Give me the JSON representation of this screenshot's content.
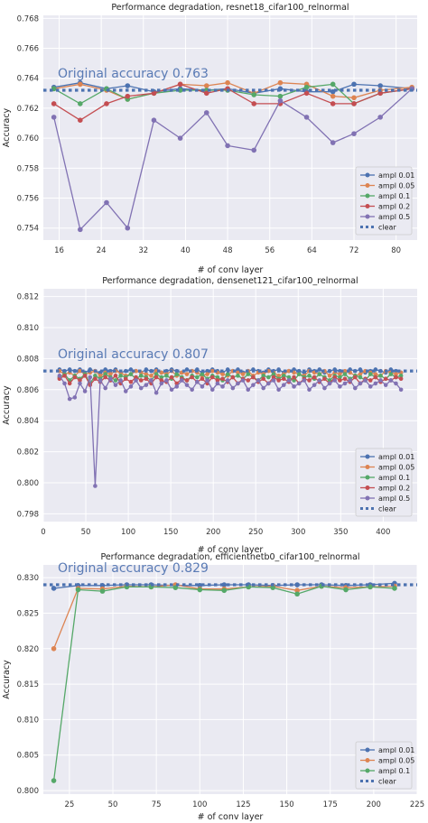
{
  "colors": {
    "background": "#eaeaf2",
    "grid": "#ffffff",
    "ampl_0_01": "#4c72b0",
    "ampl_0_05": "#dd8452",
    "ampl_0_1": "#55a868",
    "ampl_0_2": "#c44e52",
    "ampl_0_5": "#8172b3",
    "clear": "#4c72b0",
    "annotation": "#5a7bb5"
  },
  "chart_data": [
    {
      "type": "line",
      "title": "Performance degradation, resnet18_cifar100_relnormal",
      "xlabel": "# of conv layer",
      "ylabel": "Accuracy",
      "annotation": "Original accuracy 0.763",
      "xlim": [
        13,
        84
      ],
      "ylim": [
        0.7532,
        0.7682
      ],
      "xticks": [
        16,
        24,
        32,
        40,
        48,
        56,
        64,
        72,
        80
      ],
      "yticks": [
        0.754,
        0.756,
        0.758,
        0.76,
        0.762,
        0.764,
        0.766,
        0.768
      ],
      "ytick_labels": [
        "0.754",
        "0.756",
        "0.758",
        "0.760",
        "0.762",
        "0.764",
        "0.766",
        "0.768"
      ],
      "legend_position": "lower-right",
      "x": [
        15,
        20,
        25,
        29,
        34,
        39,
        44,
        48,
        53,
        58,
        63,
        68,
        72,
        77,
        83
      ],
      "series": [
        {
          "name": "ampl 0.01",
          "values": [
            0.7634,
            0.7637,
            0.7633,
            0.7635,
            0.7631,
            0.7633,
            0.7632,
            0.7633,
            0.763,
            0.7633,
            0.7631,
            0.7631,
            0.7636,
            0.7635,
            0.7633
          ]
        },
        {
          "name": "ampl 0.05",
          "values": [
            0.7633,
            0.7636,
            0.7632,
            0.7626,
            0.763,
            0.7636,
            0.7635,
            0.7637,
            0.763,
            0.7637,
            0.7636,
            0.7628,
            0.7627,
            0.7632,
            0.7634
          ]
        },
        {
          "name": "ampl 0.1",
          "values": [
            0.7633,
            0.7623,
            0.7633,
            0.7626,
            0.763,
            0.7632,
            0.7632,
            0.7632,
            0.7629,
            0.7628,
            0.7634,
            0.7636,
            0.7623,
            0.763,
            0.7633
          ]
        },
        {
          "name": "ampl 0.2",
          "values": [
            0.7623,
            0.7612,
            0.7623,
            0.7628,
            0.763,
            0.7636,
            0.763,
            0.7633,
            0.7623,
            0.7623,
            0.763,
            0.7623,
            0.7623,
            0.763,
            0.7633
          ]
        },
        {
          "name": "ampl 0.5",
          "values": [
            0.7614,
            0.7539,
            0.7557,
            0.754,
            0.7612,
            0.76,
            0.7617,
            0.7595,
            0.7592,
            0.7625,
            0.7614,
            0.7597,
            0.7603,
            0.7614,
            0.7633
          ]
        }
      ],
      "clear": {
        "name": "clear",
        "value": 0.7632
      }
    },
    {
      "type": "line",
      "title": "Performance degradation, densenet121_cifar100_relnormal",
      "xlabel": "# of conv layer",
      "ylabel": "Accuracy",
      "annotation": "Original accuracy 0.807",
      "xlim": [
        0,
        440
      ],
      "ylim": [
        0.7975,
        0.8125
      ],
      "xticks": [
        0,
        50,
        100,
        150,
        200,
        250,
        300,
        350,
        400
      ],
      "yticks": [
        0.798,
        0.8,
        0.802,
        0.804,
        0.806,
        0.808,
        0.81,
        0.812
      ],
      "ytick_labels": [
        "0.798",
        "0.800",
        "0.802",
        "0.804",
        "0.806",
        "0.808",
        "0.810",
        "0.812"
      ],
      "legend_position": "lower-right",
      "x": [
        19,
        25,
        31,
        37,
        43,
        49,
        55,
        61,
        67,
        73,
        79,
        85,
        91,
        97,
        103,
        109,
        115,
        121,
        127,
        133,
        139,
        145,
        151,
        157,
        163,
        169,
        175,
        181,
        187,
        193,
        199,
        205,
        211,
        217,
        223,
        229,
        235,
        241,
        247,
        253,
        259,
        265,
        271,
        277,
        283,
        289,
        295,
        301,
        307,
        313,
        319,
        325,
        331,
        337,
        343,
        349,
        355,
        361,
        367,
        373,
        379,
        385,
        391,
        397,
        403,
        409,
        415,
        421
      ],
      "series": [
        {
          "name": "ampl 0.01",
          "values": [
            0.8073,
            0.8072,
            0.8073,
            0.8072,
            0.8073,
            0.8071,
            0.8073,
            0.8072,
            0.8071,
            0.8073,
            0.8072,
            0.8073,
            0.8071,
            0.8072,
            0.8073,
            0.8072,
            0.8071,
            0.8073,
            0.8072,
            0.8073,
            0.8071,
            0.8072,
            0.8073,
            0.8072,
            0.8071,
            0.8073,
            0.8072,
            0.8073,
            0.8071,
            0.8072,
            0.8073,
            0.8072,
            0.8071,
            0.8073,
            0.8072,
            0.8073,
            0.8071,
            0.8072,
            0.8073,
            0.8072,
            0.8071,
            0.8073,
            0.8072,
            0.8073,
            0.8071,
            0.8072,
            0.8073,
            0.8072,
            0.8071,
            0.8073,
            0.8072,
            0.8073,
            0.8071,
            0.8072,
            0.8073,
            0.8072,
            0.8071,
            0.8073,
            0.8072,
            0.8073,
            0.8071,
            0.8072,
            0.8073,
            0.8072,
            0.8071,
            0.8073,
            0.8072,
            0.8071
          ]
        },
        {
          "name": "ampl 0.05",
          "values": [
            0.8072,
            0.807,
            0.8071,
            0.8069,
            0.8072,
            0.807,
            0.8071,
            0.8072,
            0.8069,
            0.8071,
            0.807,
            0.8072,
            0.8071,
            0.8069,
            0.807,
            0.8072,
            0.8071,
            0.807,
            0.8069,
            0.8072,
            0.8071,
            0.807,
            0.8072,
            0.8069,
            0.8071,
            0.807,
            0.8072,
            0.8071,
            0.8069,
            0.807,
            0.8072,
            0.8071,
            0.807,
            0.8069,
            0.8072,
            0.8071,
            0.807,
            0.8072,
            0.8069,
            0.8071,
            0.807,
            0.8072,
            0.8071,
            0.8069,
            0.807,
            0.8072,
            0.8071,
            0.807,
            0.8069,
            0.8072,
            0.8071,
            0.807,
            0.8072,
            0.8069,
            0.8071,
            0.807,
            0.8072,
            0.8071,
            0.8069,
            0.807,
            0.8072,
            0.8071,
            0.807,
            0.8069,
            0.8072,
            0.8071,
            0.807,
            0.8071
          ]
        },
        {
          "name": "ampl 0.1",
          "values": [
            0.8068,
            0.807,
            0.8066,
            0.8069,
            0.8067,
            0.807,
            0.8064,
            0.8069,
            0.8067,
            0.807,
            0.8068,
            0.8066,
            0.8069,
            0.8068,
            0.807,
            0.8067,
            0.8069,
            0.8068,
            0.8066,
            0.807,
            0.8068,
            0.8069,
            0.8067,
            0.807,
            0.8068,
            0.8066,
            0.8069,
            0.8068,
            0.807,
            0.8067,
            0.8069,
            0.8068,
            0.8066,
            0.807,
            0.8068,
            0.8069,
            0.8067,
            0.807,
            0.8068,
            0.8066,
            0.8069,
            0.8068,
            0.807,
            0.8067,
            0.8069,
            0.8068,
            0.8066,
            0.807,
            0.8068,
            0.8069,
            0.8067,
            0.807,
            0.8068,
            0.8066,
            0.8069,
            0.8068,
            0.807,
            0.8067,
            0.8069,
            0.8068,
            0.8066,
            0.807,
            0.8068,
            0.8069,
            0.8067,
            0.807,
            0.8068,
            0.8069
          ]
        },
        {
          "name": "ampl 0.2",
          "values": [
            0.8067,
            0.8069,
            0.8064,
            0.8068,
            0.8066,
            0.8069,
            0.8063,
            0.8067,
            0.8065,
            0.8068,
            0.8066,
            0.8069,
            0.8064,
            0.8067,
            0.8065,
            0.8068,
            0.8066,
            0.8067,
            0.8064,
            0.8068,
            0.8066,
            0.8065,
            0.8068,
            0.8064,
            0.8067,
            0.8066,
            0.8068,
            0.8065,
            0.8067,
            0.8064,
            0.8068,
            0.8066,
            0.8067,
            0.8065,
            0.8068,
            0.8064,
            0.8067,
            0.8066,
            0.8068,
            0.8065,
            0.8067,
            0.8064,
            0.8068,
            0.8066,
            0.8067,
            0.8065,
            0.8068,
            0.8064,
            0.8067,
            0.8066,
            0.8068,
            0.8065,
            0.8067,
            0.8064,
            0.8068,
            0.8066,
            0.8067,
            0.8065,
            0.8068,
            0.8064,
            0.8067,
            0.8066,
            0.8068,
            0.8065,
            0.8067,
            0.8066,
            0.8068,
            0.8067
          ]
        },
        {
          "name": "ampl 0.5",
          "values": [
            0.8069,
            0.8064,
            0.8054,
            0.8055,
            0.8064,
            0.8059,
            0.8068,
            0.7998,
            0.8066,
            0.8061,
            0.8067,
            0.8063,
            0.8066,
            0.8059,
            0.8062,
            0.8066,
            0.8061,
            0.8063,
            0.8066,
            0.8058,
            0.8064,
            0.8066,
            0.806,
            0.8062,
            0.8066,
            0.8063,
            0.806,
            0.8065,
            0.8062,
            0.8066,
            0.806,
            0.8064,
            0.8062,
            0.8066,
            0.8061,
            0.8064,
            0.8066,
            0.806,
            0.8063,
            0.8066,
            0.8061,
            0.8064,
            0.8066,
            0.806,
            0.8063,
            0.8066,
            0.8062,
            0.8064,
            0.8066,
            0.806,
            0.8063,
            0.8066,
            0.8061,
            0.8064,
            0.8066,
            0.8062,
            0.8064,
            0.8066,
            0.8061,
            0.8064,
            0.8066,
            0.8062,
            0.8064,
            0.8066,
            0.8063,
            0.8066,
            0.8064,
            0.806
          ]
        }
      ],
      "clear": {
        "name": "clear",
        "value": 0.8072
      }
    },
    {
      "type": "line",
      "title": "Performance degradation, efficientnetb0_cifar100_relnormal",
      "xlabel": "# of conv layer",
      "ylabel": "Accuracy",
      "annotation": "Original accuracy 0.829",
      "xlim": [
        10,
        225
      ],
      "ylim": [
        0.7995,
        0.8318
      ],
      "xticks": [
        25,
        50,
        75,
        100,
        125,
        150,
        175,
        200,
        225
      ],
      "yticks": [
        0.8,
        0.805,
        0.81,
        0.815,
        0.82,
        0.825,
        0.83
      ],
      "ytick_labels": [
        "0.800",
        "0.805",
        "0.810",
        "0.815",
        "0.820",
        "0.825",
        "0.830"
      ],
      "legend_position": "lower-right",
      "x": [
        16,
        30,
        44,
        58,
        72,
        86,
        100,
        114,
        128,
        142,
        156,
        170,
        184,
        198,
        212
      ],
      "series": [
        {
          "name": "ampl 0.01",
          "values": [
            0.8285,
            0.8289,
            0.8289,
            0.829,
            0.829,
            0.8289,
            0.8289,
            0.829,
            0.829,
            0.8289,
            0.829,
            0.829,
            0.8289,
            0.829,
            0.8292
          ]
        },
        {
          "name": "ampl 0.05",
          "values": [
            0.82,
            0.8285,
            0.8284,
            0.8288,
            0.8287,
            0.829,
            0.8284,
            0.8284,
            0.8287,
            0.8288,
            0.8282,
            0.8288,
            0.8286,
            0.8287,
            0.8288
          ]
        },
        {
          "name": "ampl 0.1",
          "values": [
            0.8014,
            0.8283,
            0.8281,
            0.8287,
            0.8287,
            0.8286,
            0.8283,
            0.8282,
            0.8287,
            0.8286,
            0.8277,
            0.8288,
            0.8283,
            0.8287,
            0.8285
          ]
        }
      ],
      "clear": {
        "name": "clear",
        "value": 0.829
      }
    }
  ]
}
